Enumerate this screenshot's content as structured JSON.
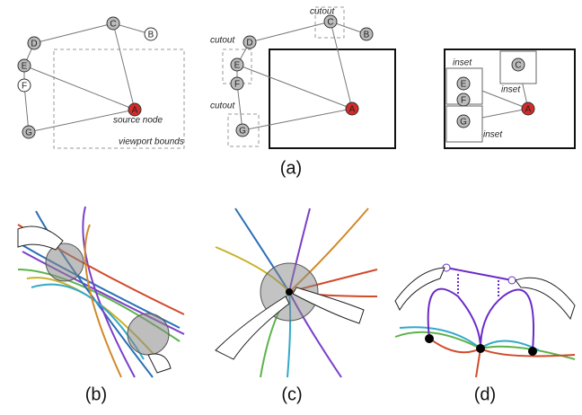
{
  "panel_a": {
    "caption": "(a)",
    "overview": {
      "nodes": [
        "A",
        "B",
        "C",
        "D",
        "E",
        "F",
        "G"
      ],
      "annotations": [
        "source node",
        "viewport bounds"
      ]
    },
    "cutout": {
      "nodes": [
        "A",
        "B",
        "C",
        "D",
        "E",
        "F",
        "G"
      ],
      "annotations": [
        "cutout",
        "cutout",
        "cutout"
      ]
    },
    "inset": {
      "nodes": [
        "A",
        "C",
        "E",
        "F",
        "G"
      ],
      "annotations": [
        "inset",
        "inset",
        "inset"
      ]
    }
  },
  "panel_b": {
    "caption": "(b)"
  },
  "panel_c": {
    "caption": "(c)"
  },
  "panel_d": {
    "caption": "(d)"
  }
}
